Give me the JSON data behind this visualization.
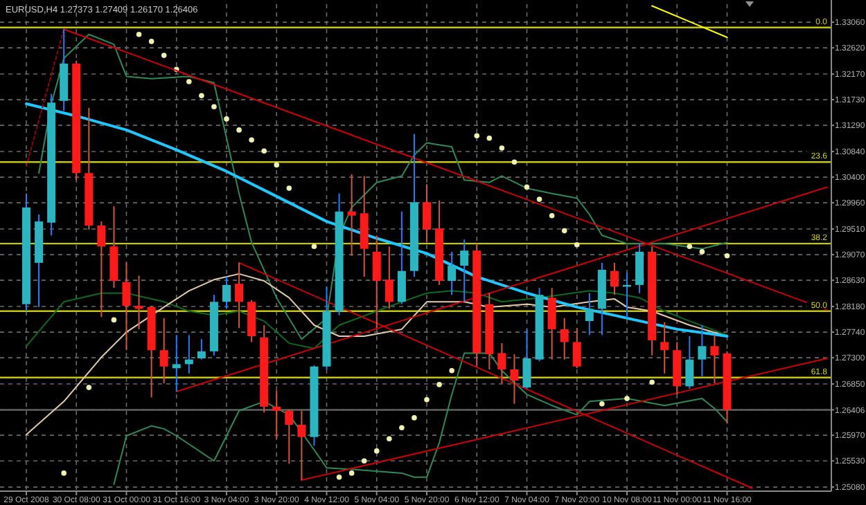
{
  "chart_data": {
    "type": "candlestick",
    "title": "EURUSD,H4  1.27373 1.27409 1.26170 1.26406",
    "grid": true,
    "categories": [
      "29 Oct 2008",
      null,
      null,
      null,
      "30 Oct 08:00",
      null,
      null,
      null,
      "31 Oct 00:00",
      null,
      null,
      null,
      "31 Oct 16:00",
      null,
      null,
      null,
      "3 Nov 04:00",
      null,
      null,
      null,
      "3 Nov 20:00",
      null,
      null,
      null,
      "4 Nov 12:00",
      null,
      null,
      null,
      "5 Nov 04:00",
      null,
      null,
      null,
      "5 Nov 20:00",
      null,
      null,
      null,
      "6 Nov 12:00",
      null,
      null,
      null,
      "7 Nov 04:00",
      null,
      null,
      null,
      "7 Nov 20:00",
      null,
      null,
      null,
      "10 Nov 08:00",
      null,
      null,
      null,
      "11 Nov 00:00",
      null,
      null,
      null,
      "11 Nov 16:00",
      null,
      null,
      null,
      null,
      null,
      null,
      null,
      null
    ],
    "ylim": [
      1.2501,
      1.3337
    ],
    "yticks": [
      {
        "value": 1.3306,
        "label": "1.33060"
      },
      {
        "value": 1.3262,
        "label": "1.32620"
      },
      {
        "value": 1.3217,
        "label": "1.32170"
      },
      {
        "value": 1.3173,
        "label": "1.31730"
      },
      {
        "value": 1.3129,
        "label": "1.31290"
      },
      {
        "value": 1.3084,
        "label": "1.30840"
      },
      {
        "value": 1.304,
        "label": "1.30400"
      },
      {
        "value": 1.2996,
        "label": "1.29960"
      },
      {
        "value": 1.2951,
        "label": "1.29510"
      },
      {
        "value": 1.2907,
        "label": "1.29070"
      },
      {
        "value": 1.2863,
        "label": "1.28630"
      },
      {
        "value": 1.2818,
        "label": "1.28180"
      },
      {
        "value": 1.2774,
        "label": "1.27740"
      },
      {
        "value": 1.273,
        "label": "1.27300"
      },
      {
        "value": 1.2685,
        "label": "1.26850"
      },
      1.26406,
      {
        "value": 1.2597,
        "label": "1.25970"
      },
      {
        "value": 1.2553,
        "label": "1.25530"
      },
      {
        "value": 1.2508,
        "label": "1.25080"
      }
    ],
    "ohlc": [
      [
        1.2822,
        1.3012,
        1.281,
        1.2988
      ],
      [
        1.2893,
        1.2976,
        1.2817,
        1.2964
      ],
      [
        1.2962,
        1.3183,
        1.294,
        1.3168
      ],
      [
        1.3171,
        1.3294,
        1.3154,
        1.3235
      ],
      [
        1.3235,
        1.324,
        1.3035,
        1.3047
      ],
      [
        1.3047,
        1.3159,
        1.295,
        1.2957
      ],
      [
        1.2957,
        1.2964,
        1.28,
        1.2921
      ],
      [
        1.2921,
        1.299,
        1.285,
        1.2862
      ],
      [
        1.286,
        1.2893,
        1.2743,
        1.2819
      ],
      [
        1.2819,
        1.2871,
        1.2779,
        1.2814
      ],
      [
        1.2817,
        1.2819,
        1.2662,
        1.2743
      ],
      [
        1.2743,
        1.2798,
        1.2686,
        1.2715
      ],
      [
        1.2712,
        1.2769,
        1.2672,
        1.2719
      ],
      [
        1.2719,
        1.2769,
        1.2703,
        1.2727
      ],
      [
        1.2729,
        1.2762,
        1.2727,
        1.2741
      ],
      [
        1.2741,
        1.2838,
        1.2734,
        1.2826
      ],
      [
        1.2826,
        1.2869,
        1.2814,
        1.2855
      ],
      [
        1.2857,
        1.2893,
        1.2781,
        1.2826
      ],
      [
        1.2826,
        1.2829,
        1.2757,
        1.2767
      ],
      [
        1.2765,
        1.2786,
        1.2636,
        1.2646
      ],
      [
        1.2646,
        1.2674,
        1.2591,
        1.2639
      ],
      [
        1.2639,
        1.2641,
        1.2548,
        1.2615
      ],
      [
        1.2615,
        1.2639,
        1.252,
        1.2594
      ],
      [
        1.2594,
        1.2717,
        1.2579,
        1.2715
      ],
      [
        1.2715,
        1.2852,
        1.271,
        1.281
      ],
      [
        1.281,
        1.3012,
        1.2803,
        1.2981
      ],
      [
        1.2981,
        1.3045,
        1.2905,
        1.2974
      ],
      [
        1.2978,
        1.3042,
        1.2869,
        1.2917
      ],
      [
        1.2912,
        1.294,
        1.2781,
        1.2862
      ],
      [
        1.2864,
        1.2921,
        1.2814,
        1.2826
      ],
      [
        1.2826,
        1.2981,
        1.2822,
        1.2879
      ],
      [
        1.2879,
        1.3114,
        1.2869,
        1.2997
      ],
      [
        1.2997,
        1.3028,
        1.2928,
        1.295
      ],
      [
        1.2952,
        1.3,
        1.2855,
        1.2862
      ],
      [
        1.2862,
        1.2912,
        1.2838,
        1.2888
      ],
      [
        1.2888,
        1.2933,
        1.2826,
        1.2914
      ],
      [
        1.2914,
        1.2926,
        1.2715,
        1.2738
      ],
      [
        1.2822,
        1.2841,
        1.271,
        1.2736
      ],
      [
        1.2738,
        1.2755,
        1.2686,
        1.271
      ],
      [
        1.271,
        1.2736,
        1.2651,
        1.2691
      ],
      [
        1.2679,
        1.2779,
        1.2677,
        1.2729
      ],
      [
        1.2727,
        1.285,
        1.2724,
        1.2838
      ],
      [
        1.2833,
        1.285,
        1.2727,
        1.2779
      ],
      [
        1.2779,
        1.2798,
        1.2727,
        1.2757
      ],
      [
        1.2757,
        1.2781,
        1.2712,
        1.2715
      ],
      [
        1.2793,
        1.2841,
        1.2769,
        1.2814
      ],
      [
        1.2814,
        1.2893,
        1.2769,
        1.2881
      ],
      [
        1.2879,
        1.2893,
        1.2838,
        1.2852
      ],
      [
        1.2852,
        1.2876,
        1.2798,
        1.2855
      ],
      [
        1.2855,
        1.2926,
        1.2841,
        1.2912
      ],
      [
        1.2912,
        1.2921,
        1.2734,
        1.276
      ],
      [
        1.2757,
        1.2791,
        1.2703,
        1.2743
      ],
      [
        1.2743,
        1.2757,
        1.2667,
        1.2681
      ],
      [
        1.2681,
        1.2767,
        1.2677,
        1.2727
      ],
      [
        1.2727,
        1.2786,
        1.2698,
        1.275
      ],
      [
        1.275,
        1.2769,
        1.2686,
        1.2734
      ],
      [
        1.27373,
        1.27409,
        1.2617,
        1.26406
      ],
      null,
      null,
      null,
      null,
      null,
      null,
      null,
      null
    ],
    "series": [
      {
        "type": "line",
        "color": "#2e8b57",
        "values": [
          null,
          1.3047,
          1.3166,
          1.3244,
          null,
          1.3285,
          null,
          1.3268,
          1.3213,
          null,
          1.3209,
          null,
          null,
          1.3213,
          null,
          1.3202,
          null,
          1.3012,
          1.2928,
          null,
          1.2833,
          null,
          1.2762,
          null,
          1.2798,
          1.294,
          1.2988,
          null,
          1.3031,
          null,
          1.3042,
          1.3078,
          1.3099,
          null,
          1.3092,
          1.3035,
          null,
          1.3031,
          1.3042,
          null,
          1.3021,
          null,
          1.3012,
          null,
          1.3004,
          1.2976,
          1.294,
          null,
          1.2926,
          null,
          null,
          1.2926,
          null,
          null,
          1.2917,
          null,
          1.2928,
          null,
          null,
          null,
          null,
          null,
          null,
          null,
          null
        ]
      },
      {
        "type": "line",
        "color": "#2e8b57",
        "values": [
          null,
          null,
          null,
          null,
          null,
          null,
          null,
          1.2513,
          1.2596,
          null,
          1.2613,
          1.2608,
          1.2596,
          null,
          null,
          1.2553,
          null,
          1.2639,
          null,
          1.2655,
          null,
          1.2632,
          null,
          1.2572,
          1.2541,
          null,
          null,
          1.2537,
          null,
          null,
          1.2532,
          1.2525,
          1.2525,
          1.2584,
          1.2667,
          1.2738,
          null,
          1.2738,
          1.2708,
          null,
          1.2667,
          null,
          1.2648,
          null,
          1.2632,
          1.2655,
          null,
          null,
          1.266,
          null,
          null,
          1.2648,
          null,
          null,
          1.266,
          1.2643,
          1.262,
          null,
          null,
          null,
          null,
          null,
          null,
          null,
          null
        ]
      },
      {
        "type": "line",
        "color": "#0b6b1e",
        "values": [
          1.275,
          null,
          null,
          1.2826,
          null,
          null,
          1.2841,
          null,
          1.2841,
          null,
          null,
          1.2826,
          null,
          1.281,
          null,
          1.2803,
          null,
          1.281,
          null,
          1.2793,
          null,
          1.2755,
          null,
          1.2746,
          null,
          1.2786,
          null,
          null,
          1.281,
          null,
          1.2826,
          null,
          1.2841,
          null,
          1.2845,
          null,
          1.2841,
          null,
          1.2826,
          null,
          null,
          1.2833,
          null,
          null,
          null,
          1.2845,
          null,
          1.2841,
          null,
          1.2833,
          null,
          1.281,
          null,
          1.2793,
          null,
          null,
          1.2769,
          null,
          null,
          null,
          null,
          null,
          null,
          null,
          null
        ]
      },
      {
        "type": "line",
        "color": "#e6ccaa",
        "values": [
          1.2598,
          null,
          null,
          1.2655,
          null,
          null,
          1.2731,
          null,
          1.2774,
          null,
          null,
          1.2817,
          null,
          1.2845,
          null,
          1.2864,
          null,
          1.2874,
          null,
          1.2862,
          null,
          1.2833,
          null,
          1.2786,
          null,
          1.2767,
          null,
          1.2767,
          null,
          null,
          1.2779,
          null,
          1.2826,
          null,
          null,
          1.2826,
          null,
          1.2817,
          null,
          null,
          1.2822,
          null,
          1.2817,
          null,
          null,
          1.2826,
          null,
          1.2831,
          1.2817,
          null,
          1.281,
          null,
          null,
          1.2786,
          null,
          null,
          1.2767,
          null,
          null,
          null,
          null,
          null,
          null,
          null,
          null
        ]
      },
      {
        "type": "line",
        "color": "#1ec8ff",
        "values": [
          1.3166,
          null,
          null,
          null,
          1.3145,
          null,
          null,
          null,
          1.3121,
          null,
          null,
          null,
          1.3087,
          null,
          null,
          null,
          1.305,
          null,
          null,
          null,
          1.3007,
          null,
          null,
          null,
          1.2964,
          null,
          null,
          null,
          1.2935,
          null,
          null,
          null,
          1.2909,
          null,
          null,
          null,
          1.2869,
          null,
          null,
          null,
          1.2841,
          null,
          null,
          null,
          1.2817,
          null,
          null,
          null,
          1.2798,
          null,
          null,
          null,
          1.2779,
          null,
          null,
          null,
          1.2767,
          null,
          null,
          null,
          null,
          null,
          null,
          null,
          null
        ]
      },
      {
        "type": "scatter",
        "marker": "circle",
        "color": "#f0f0b0",
        "values": [
          null,
          null,
          null,
          1.2532,
          null,
          1.2679,
          null,
          1.2795,
          null,
          1.3285,
          1.3273,
          1.3249,
          1.3225,
          1.3204,
          1.318,
          1.3161,
          1.314,
          1.3121,
          1.3104,
          1.3085,
          1.3061,
          1.3021,
          null,
          1.2921,
          null,
          1.2525,
          1.2532,
          1.2553,
          1.257,
          1.2591,
          1.261,
          1.2627,
          1.2658,
          1.2684,
          1.2708,
          null,
          1.3111,
          1.3107,
          1.309,
          1.3066,
          1.3023,
          1.3002,
          1.2974,
          1.2948,
          1.2924,
          null,
          1.2651,
          null,
          1.266,
          null,
          1.2688,
          null,
          null,
          1.2921,
          1.2912,
          null,
          1.2905,
          null,
          null,
          null,
          null,
          null,
          null,
          null,
          null
        ]
      },
      {
        "type": "line",
        "color": "#a00000",
        "line_style": "dotted",
        "values": [
          1.3059,
          null,
          null,
          1.3294,
          null,
          null,
          null,
          null,
          null,
          null,
          null,
          null,
          null,
          null,
          null,
          null,
          null,
          null,
          null,
          null,
          null,
          null,
          null,
          null,
          null,
          null,
          null,
          null,
          null,
          null,
          null,
          null,
          null,
          null,
          null,
          null,
          null,
          null,
          null,
          null,
          null,
          null,
          null,
          null,
          null,
          null,
          null,
          null,
          null,
          null,
          null,
          null,
          null,
          null,
          null,
          null,
          null,
          null,
          null,
          null,
          null,
          null,
          null,
          null,
          null
        ]
      },
      {
        "type": "line",
        "color": "#d00000",
        "values": [
          null,
          null,
          null,
          1.3294,
          null,
          null,
          null,
          null,
          null,
          null,
          null,
          null,
          null,
          null,
          null,
          null,
          null,
          null,
          null,
          null,
          null,
          null,
          null,
          null,
          null,
          null,
          null,
          null,
          null,
          null,
          null,
          null,
          null,
          null,
          null,
          null,
          null,
          null,
          null,
          null,
          null,
          null,
          null,
          null,
          null,
          null,
          null,
          null,
          null,
          null,
          null,
          null,
          null,
          null,
          null,
          null,
          null,
          null,
          null,
          null,
          null,
          null,
          null,
          null,
          1.2812
        ]
      },
      {
        "type": "line",
        "color": "#d00000",
        "values": [
          null,
          null,
          null,
          null,
          null,
          null,
          null,
          null,
          null,
          null,
          null,
          null,
          null,
          null,
          null,
          null,
          null,
          1.2893,
          null,
          null,
          null,
          null,
          null,
          null,
          null,
          null,
          null,
          null,
          null,
          null,
          null,
          null,
          null,
          null,
          null,
          null,
          null,
          null,
          null,
          null,
          null,
          null,
          null,
          null,
          null,
          null,
          null,
          null,
          null,
          null,
          null,
          null,
          null,
          null,
          null,
          null,
          null,
          null,
          1.2506,
          null,
          null,
          null,
          null,
          null,
          null
        ]
      },
      {
        "type": "line",
        "color": "#d00000",
        "values": [
          null,
          null,
          null,
          null,
          null,
          null,
          null,
          null,
          null,
          null,
          null,
          null,
          1.2672,
          null,
          null,
          null,
          null,
          null,
          null,
          null,
          null,
          null,
          null,
          null,
          null,
          null,
          null,
          null,
          null,
          null,
          null,
          null,
          null,
          null,
          null,
          null,
          null,
          null,
          null,
          null,
          null,
          null,
          null,
          null,
          null,
          null,
          null,
          null,
          null,
          null,
          null,
          null,
          null,
          null,
          null,
          null,
          null,
          null,
          null,
          null,
          null,
          null,
          null,
          null,
          1.3023
        ]
      },
      {
        "type": "line",
        "color": "#d00000",
        "values": [
          null,
          null,
          null,
          null,
          null,
          null,
          null,
          null,
          null,
          null,
          null,
          null,
          null,
          null,
          null,
          null,
          null,
          null,
          null,
          null,
          null,
          null,
          1.252,
          null,
          null,
          null,
          null,
          null,
          null,
          null,
          null,
          null,
          null,
          null,
          null,
          null,
          null,
          null,
          null,
          null,
          null,
          null,
          null,
          null,
          null,
          null,
          null,
          null,
          null,
          null,
          null,
          null,
          null,
          null,
          null,
          null,
          null,
          null,
          null,
          null,
          null,
          null,
          null,
          null,
          1.2729
        ]
      },
      {
        "type": "line",
        "color": "#ffff00",
        "values": [
          null,
          null,
          null,
          null,
          null,
          null,
          null,
          null,
          null,
          null,
          null,
          null,
          null,
          null,
          null,
          null,
          null,
          null,
          null,
          null,
          null,
          null,
          null,
          null,
          null,
          null,
          null,
          null,
          null,
          null,
          null,
          null,
          null,
          null,
          null,
          null,
          null,
          null,
          null,
          null,
          null,
          null,
          null,
          null,
          null,
          null,
          null,
          null,
          null,
          null,
          1.3334,
          null,
          null,
          null,
          null,
          null,
          1.328,
          null,
          null,
          null,
          null,
          null,
          null,
          null,
          null
        ]
      }
    ],
    "ref_lines": [
      {
        "axis": "y",
        "value": 1.3297,
        "color": "#c8c800"
      },
      {
        "axis": "y",
        "value": 1.3066,
        "color": "#c8c800"
      },
      {
        "axis": "y",
        "value": 1.2926,
        "color": "#c8c800"
      },
      {
        "axis": "y",
        "value": 1.281,
        "color": "#c8c800"
      },
      {
        "axis": "y",
        "value": 1.2696,
        "color": "#c8c800"
      },
      {
        "axis": "y",
        "value": 1.26406,
        "color": "#606060"
      }
    ],
    "annotations": [
      {
        "text": "0.0",
        "y": 1.3297
      },
      {
        "text": "23.6",
        "y": 1.3066
      },
      {
        "text": "38.2",
        "y": 1.2926
      },
      {
        "text": "50.0",
        "y": 1.281
      },
      {
        "text": "61.8",
        "y": 1.2696
      }
    ]
  }
}
